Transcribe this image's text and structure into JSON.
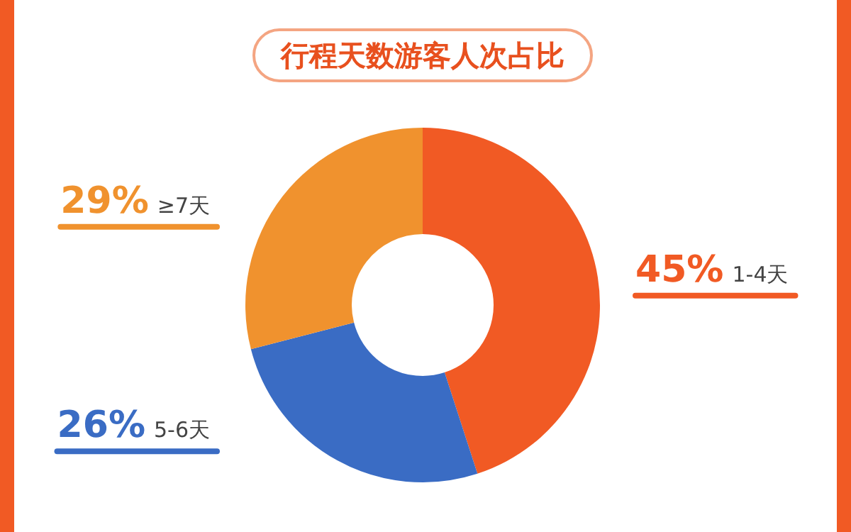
{
  "chart_data": {
    "type": "donut",
    "title": "行程天数游客人次占比",
    "categories": [
      "1-4天",
      "5-6天",
      "≥7天"
    ],
    "values": [
      45,
      26,
      29
    ],
    "value_labels": [
      "45%",
      "26%",
      "29%"
    ],
    "colors": [
      "#f15a24",
      "#3a6cc4",
      "#f0922e"
    ],
    "legend": false
  }
}
